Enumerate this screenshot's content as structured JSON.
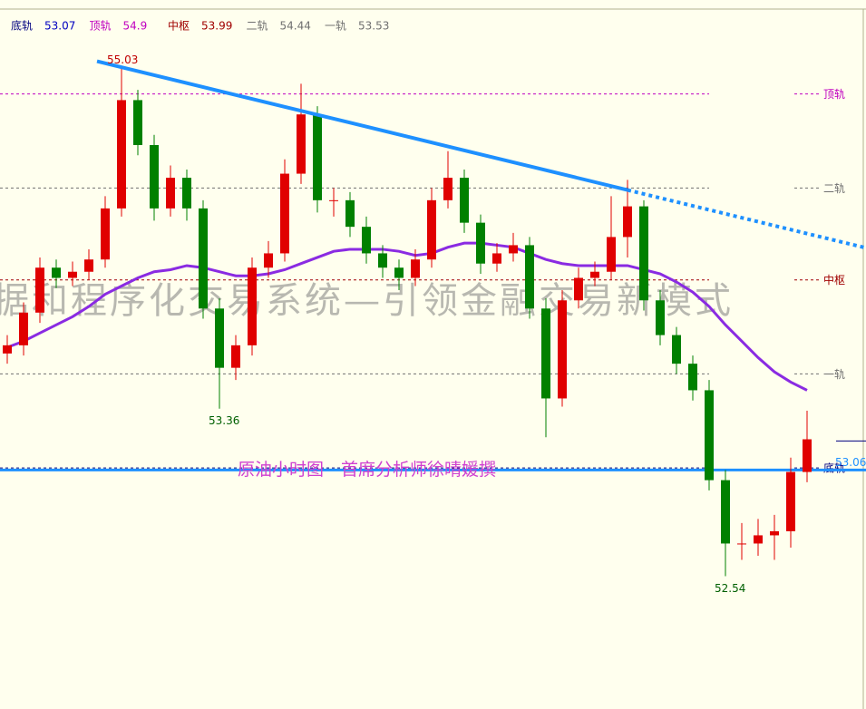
{
  "chart_data": {
    "type": "candlestick",
    "ylim": [
      51.89,
      55.36
    ],
    "up_color": "#e00000",
    "down_color": "#008000",
    "legend": [
      {
        "name": "底轨",
        "value": 53.07,
        "color": "#000080"
      },
      {
        "name": "顶轨",
        "value": 54.9,
        "color": "#c000c0"
      },
      {
        "name": "中枢",
        "value": 53.99,
        "color": "#a00000"
      },
      {
        "name": "二轨",
        "value": 54.44,
        "color": "#707070"
      },
      {
        "name": "一轨",
        "value": 53.53,
        "color": "#707070"
      }
    ],
    "ohlc": [
      [
        53.63,
        53.72,
        53.58,
        53.67
      ],
      [
        53.67,
        53.88,
        53.62,
        53.83
      ],
      [
        53.83,
        54.1,
        53.78,
        54.05
      ],
      [
        54.05,
        54.09,
        53.95,
        54.0
      ],
      [
        54.0,
        54.08,
        53.96,
        54.03
      ],
      [
        54.03,
        54.14,
        53.99,
        54.09
      ],
      [
        54.09,
        54.4,
        54.05,
        54.34
      ],
      [
        54.34,
        55.03,
        54.3,
        54.87
      ],
      [
        54.87,
        54.92,
        54.6,
        54.65
      ],
      [
        54.65,
        54.7,
        54.28,
        54.34
      ],
      [
        54.34,
        54.55,
        54.3,
        54.49
      ],
      [
        54.49,
        54.53,
        54.28,
        54.34
      ],
      [
        54.34,
        54.38,
        53.8,
        53.85
      ],
      [
        53.85,
        53.9,
        53.36,
        53.56
      ],
      [
        53.56,
        53.72,
        53.5,
        53.67
      ],
      [
        53.67,
        54.1,
        53.62,
        54.05
      ],
      [
        54.05,
        54.18,
        54.0,
        54.12
      ],
      [
        54.12,
        54.58,
        54.08,
        54.51
      ],
      [
        54.51,
        54.95,
        54.46,
        54.8
      ],
      [
        54.8,
        54.84,
        54.32,
        54.38
      ],
      [
        54.38,
        54.44,
        54.3,
        54.38
      ],
      [
        54.38,
        54.42,
        54.2,
        54.25
      ],
      [
        54.25,
        54.3,
        54.07,
        54.12
      ],
      [
        54.12,
        54.16,
        54.0,
        54.05
      ],
      [
        54.05,
        54.09,
        53.94,
        54.0
      ],
      [
        54.0,
        54.14,
        53.96,
        54.09
      ],
      [
        54.09,
        54.44,
        54.05,
        54.38
      ],
      [
        54.38,
        54.62,
        54.34,
        54.49
      ],
      [
        54.49,
        54.53,
        54.22,
        54.27
      ],
      [
        54.27,
        54.31,
        54.02,
        54.07
      ],
      [
        54.07,
        54.17,
        54.03,
        54.12
      ],
      [
        54.12,
        54.22,
        54.08,
        54.16
      ],
      [
        54.16,
        54.2,
        53.8,
        53.85
      ],
      [
        53.85,
        53.9,
        53.22,
        53.41
      ],
      [
        53.41,
        53.94,
        53.37,
        53.89
      ],
      [
        53.89,
        54.05,
        53.85,
        54.0
      ],
      [
        54.0,
        54.08,
        53.96,
        54.03
      ],
      [
        54.03,
        54.4,
        53.99,
        54.2
      ],
      [
        54.2,
        54.48,
        54.1,
        54.35
      ],
      [
        54.35,
        54.38,
        53.84,
        53.89
      ],
      [
        53.89,
        53.94,
        53.67,
        53.72
      ],
      [
        53.72,
        53.76,
        53.53,
        53.58
      ],
      [
        53.58,
        53.62,
        53.4,
        53.45
      ],
      [
        53.45,
        53.5,
        52.96,
        53.01
      ],
      [
        53.01,
        53.06,
        52.54,
        52.7
      ],
      [
        52.7,
        52.8,
        52.62,
        52.7
      ],
      [
        52.7,
        52.82,
        52.64,
        52.74
      ],
      [
        52.74,
        52.84,
        52.62,
        52.76
      ],
      [
        52.76,
        53.12,
        52.68,
        53.05
      ],
      [
        53.05,
        53.35,
        53.0,
        53.21
      ]
    ],
    "ma": {
      "color": "#8a2be2",
      "values": [
        53.66,
        53.69,
        53.73,
        53.77,
        53.81,
        53.86,
        53.92,
        53.96,
        54.0,
        54.03,
        54.04,
        54.06,
        54.05,
        54.03,
        54.01,
        54.01,
        54.02,
        54.04,
        54.07,
        54.1,
        54.13,
        54.14,
        54.14,
        54.14,
        54.13,
        54.11,
        54.12,
        54.15,
        54.17,
        54.17,
        54.16,
        54.15,
        54.12,
        54.09,
        54.07,
        54.06,
        54.06,
        54.06,
        54.06,
        54.04,
        54.02,
        53.98,
        53.93,
        53.86,
        53.77,
        53.69,
        53.61,
        53.54,
        53.49,
        53.45
      ]
    },
    "annotations": [
      {
        "value": 55.03,
        "color": "#c00000"
      },
      {
        "value": 53.36,
        "color": "#006000"
      },
      {
        "value": 52.54,
        "color": "#006000"
      }
    ],
    "support_line": {
      "value": 53.06,
      "color": "#1e90ff"
    },
    "trendline": {
      "color": "#1e90ff",
      "from": {
        "x": 5.5,
        "y": 55.06
      },
      "to": {
        "x": 38,
        "y": 54.43
      }
    },
    "caption": "原油小时图　首席分析师徐晴媛撰",
    "watermark": "据和程序化交易系统—引领金融交易新模式"
  }
}
